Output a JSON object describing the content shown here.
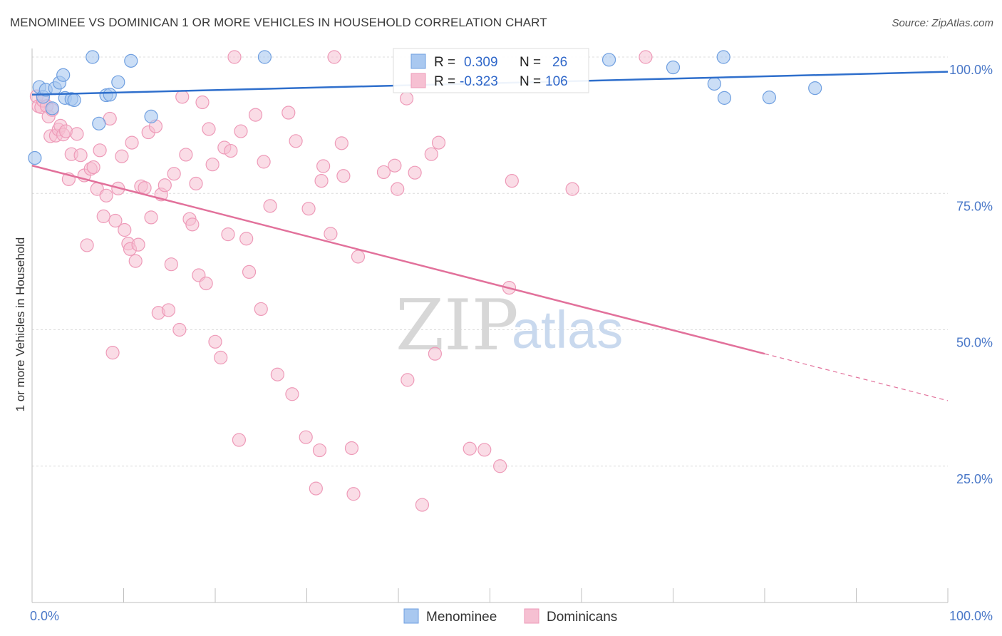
{
  "header": {
    "title": "MENOMINEE VS DOMINICAN 1 OR MORE VEHICLES IN HOUSEHOLD CORRELATION CHART",
    "source": "Source: ZipAtlas.com"
  },
  "watermark": {
    "zip": "ZIP",
    "atlas": "atlas"
  },
  "colors": {
    "menominee_fill": "#a9c8f0",
    "menominee_stroke": "#6f9fe0",
    "menominee_line": "#2f6fcc",
    "dominicans_fill": "#f6c0d2",
    "dominicans_stroke": "#ee9ab8",
    "dominicans_line": "#e2719b",
    "tick_label": "#4a78c8"
  },
  "legend_top": {
    "rows": [
      {
        "r_label": "R =",
        "r_value": "0.309",
        "n_label": "N =",
        "n_value": "26"
      },
      {
        "r_label": "R =",
        "r_value": "-0.323",
        "n_label": "N =",
        "n_value": "106"
      }
    ]
  },
  "legend_bottom": {
    "items": [
      "Menominee",
      "Dominicans"
    ]
  },
  "chart_data": {
    "type": "scatter",
    "title": "MENOMINEE VS DOMINICAN 1 OR MORE VEHICLES IN HOUSEHOLD CORRELATION CHART",
    "xlabel": "",
    "ylabel": "1 or more Vehicles in Household",
    "xlim": [
      0,
      100
    ],
    "ylim": [
      0,
      100
    ],
    "x_tick_labels": [
      "0.0%",
      "100.0%"
    ],
    "y_tick_labels": [
      "100.0%",
      "75.0%",
      "50.0%",
      "25.0%"
    ],
    "y_tick_values": [
      100,
      75,
      50,
      25
    ],
    "grid": true,
    "legend_position": "top-center",
    "series": [
      {
        "name": "Menominee",
        "R": 0.309,
        "N": 26,
        "trend": {
          "x": [
            0,
            100
          ],
          "y": [
            93.1,
            97.3
          ]
        },
        "points": [
          {
            "x": 0.3,
            "y": 81.5
          },
          {
            "x": 0.8,
            "y": 94.5
          },
          {
            "x": 1.2,
            "y": 92.7
          },
          {
            "x": 1.5,
            "y": 94.0
          },
          {
            "x": 2.2,
            "y": 90.6
          },
          {
            "x": 2.5,
            "y": 94.3
          },
          {
            "x": 3.0,
            "y": 95.3
          },
          {
            "x": 3.4,
            "y": 96.7
          },
          {
            "x": 3.6,
            "y": 92.5
          },
          {
            "x": 4.3,
            "y": 92.3
          },
          {
            "x": 4.6,
            "y": 92.1
          },
          {
            "x": 6.6,
            "y": 100.0
          },
          {
            "x": 7.3,
            "y": 87.8
          },
          {
            "x": 8.1,
            "y": 93.0
          },
          {
            "x": 8.5,
            "y": 93.1
          },
          {
            "x": 9.4,
            "y": 95.4
          },
          {
            "x": 10.8,
            "y": 99.3
          },
          {
            "x": 13.0,
            "y": 89.1
          },
          {
            "x": 25.4,
            "y": 100.0
          },
          {
            "x": 63.0,
            "y": 99.5
          },
          {
            "x": 70.0,
            "y": 98.1
          },
          {
            "x": 74.5,
            "y": 95.1
          },
          {
            "x": 75.5,
            "y": 100.0
          },
          {
            "x": 75.6,
            "y": 92.5
          },
          {
            "x": 80.5,
            "y": 92.6
          },
          {
            "x": 85.5,
            "y": 94.3
          }
        ]
      },
      {
        "name": "Dominicans",
        "R": -0.323,
        "N": 106,
        "trend": {
          "x": [
            0,
            80
          ],
          "y": [
            80.1,
            45.6
          ]
        },
        "trend_extension": {
          "x": [
            80,
            100
          ],
          "y": [
            45.6,
            37.0
          ]
        },
        "points": [
          {
            "x": 0.5,
            "y": 92.8
          },
          {
            "x": 0.7,
            "y": 91.0
          },
          {
            "x": 1.0,
            "y": 90.8
          },
          {
            "x": 1.2,
            "y": 92.0
          },
          {
            "x": 1.6,
            "y": 91.0
          },
          {
            "x": 1.8,
            "y": 89.1
          },
          {
            "x": 2.0,
            "y": 85.5
          },
          {
            "x": 2.2,
            "y": 90.3
          },
          {
            "x": 2.6,
            "y": 85.6
          },
          {
            "x": 2.9,
            "y": 86.7
          },
          {
            "x": 3.1,
            "y": 87.4
          },
          {
            "x": 3.4,
            "y": 85.8
          },
          {
            "x": 3.7,
            "y": 86.4
          },
          {
            "x": 4.0,
            "y": 77.6
          },
          {
            "x": 4.3,
            "y": 82.2
          },
          {
            "x": 4.9,
            "y": 85.9
          },
          {
            "x": 5.3,
            "y": 82.0
          },
          {
            "x": 5.7,
            "y": 78.3
          },
          {
            "x": 6.0,
            "y": 65.5
          },
          {
            "x": 6.4,
            "y": 79.5
          },
          {
            "x": 6.7,
            "y": 79.8
          },
          {
            "x": 7.1,
            "y": 75.8
          },
          {
            "x": 7.4,
            "y": 82.9
          },
          {
            "x": 7.8,
            "y": 70.8
          },
          {
            "x": 8.1,
            "y": 74.6
          },
          {
            "x": 8.5,
            "y": 88.7
          },
          {
            "x": 8.8,
            "y": 45.8
          },
          {
            "x": 9.1,
            "y": 70.0
          },
          {
            "x": 9.4,
            "y": 75.9
          },
          {
            "x": 9.8,
            "y": 81.8
          },
          {
            "x": 10.1,
            "y": 68.3
          },
          {
            "x": 10.5,
            "y": 65.8
          },
          {
            "x": 10.7,
            "y": 64.8
          },
          {
            "x": 10.9,
            "y": 84.3
          },
          {
            "x": 11.3,
            "y": 62.6
          },
          {
            "x": 11.6,
            "y": 65.6
          },
          {
            "x": 11.9,
            "y": 76.3
          },
          {
            "x": 12.3,
            "y": 76.0
          },
          {
            "x": 12.7,
            "y": 86.2
          },
          {
            "x": 13.0,
            "y": 70.6
          },
          {
            "x": 13.5,
            "y": 87.3
          },
          {
            "x": 13.8,
            "y": 53.1
          },
          {
            "x": 14.1,
            "y": 74.8
          },
          {
            "x": 14.5,
            "y": 76.5
          },
          {
            "x": 14.9,
            "y": 53.6
          },
          {
            "x": 15.2,
            "y": 62.0
          },
          {
            "x": 15.5,
            "y": 78.6
          },
          {
            "x": 16.1,
            "y": 50.0
          },
          {
            "x": 16.4,
            "y": 92.7
          },
          {
            "x": 16.8,
            "y": 82.1
          },
          {
            "x": 17.2,
            "y": 70.3
          },
          {
            "x": 17.5,
            "y": 69.3
          },
          {
            "x": 17.9,
            "y": 76.8
          },
          {
            "x": 18.2,
            "y": 60.0
          },
          {
            "x": 18.6,
            "y": 91.7
          },
          {
            "x": 19.0,
            "y": 58.5
          },
          {
            "x": 19.3,
            "y": 86.8
          },
          {
            "x": 19.7,
            "y": 80.3
          },
          {
            "x": 20.0,
            "y": 47.8
          },
          {
            "x": 20.6,
            "y": 44.9
          },
          {
            "x": 21.0,
            "y": 83.4
          },
          {
            "x": 21.4,
            "y": 67.5
          },
          {
            "x": 21.7,
            "y": 82.8
          },
          {
            "x": 22.1,
            "y": 100.0
          },
          {
            "x": 22.6,
            "y": 29.8
          },
          {
            "x": 22.8,
            "y": 86.4
          },
          {
            "x": 23.4,
            "y": 66.7
          },
          {
            "x": 23.7,
            "y": 60.6
          },
          {
            "x": 24.4,
            "y": 89.4
          },
          {
            "x": 25.0,
            "y": 53.8
          },
          {
            "x": 25.3,
            "y": 80.8
          },
          {
            "x": 26.0,
            "y": 72.7
          },
          {
            "x": 26.8,
            "y": 41.8
          },
          {
            "x": 28.0,
            "y": 89.8
          },
          {
            "x": 28.4,
            "y": 38.2
          },
          {
            "x": 28.8,
            "y": 84.6
          },
          {
            "x": 29.9,
            "y": 30.3
          },
          {
            "x": 30.2,
            "y": 72.2
          },
          {
            "x": 31.0,
            "y": 20.9
          },
          {
            "x": 31.4,
            "y": 27.9
          },
          {
            "x": 31.6,
            "y": 77.3
          },
          {
            "x": 31.8,
            "y": 80.0
          },
          {
            "x": 32.6,
            "y": 67.6
          },
          {
            "x": 33.0,
            "y": 100.0
          },
          {
            "x": 33.8,
            "y": 84.2
          },
          {
            "x": 34.0,
            "y": 78.2
          },
          {
            "x": 34.9,
            "y": 28.3
          },
          {
            "x": 35.1,
            "y": 19.9
          },
          {
            "x": 35.6,
            "y": 63.4
          },
          {
            "x": 38.4,
            "y": 78.9
          },
          {
            "x": 39.6,
            "y": 80.1
          },
          {
            "x": 39.9,
            "y": 75.8
          },
          {
            "x": 40.9,
            "y": 92.4
          },
          {
            "x": 41.0,
            "y": 40.8
          },
          {
            "x": 41.8,
            "y": 78.8
          },
          {
            "x": 42.6,
            "y": 17.9
          },
          {
            "x": 43.6,
            "y": 82.2
          },
          {
            "x": 44.0,
            "y": 45.6
          },
          {
            "x": 44.4,
            "y": 84.3
          },
          {
            "x": 47.8,
            "y": 28.2
          },
          {
            "x": 49.4,
            "y": 28.0
          },
          {
            "x": 51.1,
            "y": 25.0
          },
          {
            "x": 52.1,
            "y": 57.7
          },
          {
            "x": 52.4,
            "y": 77.3
          },
          {
            "x": 59.0,
            "y": 75.8
          },
          {
            "x": 67.0,
            "y": 100.0
          }
        ]
      }
    ]
  }
}
